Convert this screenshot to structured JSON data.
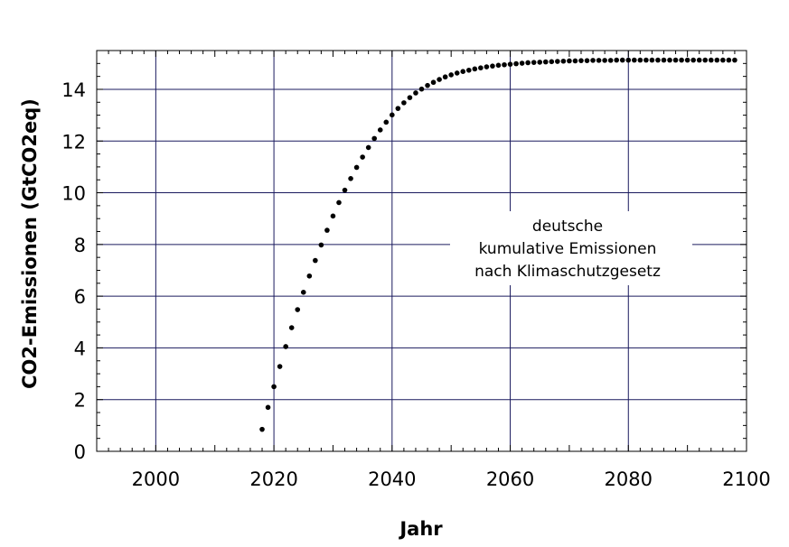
{
  "chart_data": {
    "type": "scatter",
    "title": "",
    "xlabel": "Jahr",
    "ylabel": "CO2-Emissionen (GtCO2eq)",
    "xlim": [
      1990,
      2100
    ],
    "ylim": [
      0,
      15.5
    ],
    "x_ticks": [
      2000,
      2020,
      2040,
      2060,
      2080,
      2100
    ],
    "y_ticks": [
      0,
      2,
      4,
      6,
      8,
      10,
      12,
      14
    ],
    "grid": true,
    "series": [
      {
        "name": "",
        "color": "#000000",
        "points": [
          [
            2018,
            0.85
          ],
          [
            2019,
            1.7
          ],
          [
            2020,
            2.5
          ],
          [
            2021,
            3.28
          ],
          [
            2022,
            4.05
          ],
          [
            2023,
            4.78
          ],
          [
            2024,
            5.48
          ],
          [
            2025,
            6.15
          ],
          [
            2026,
            6.78
          ],
          [
            2027,
            7.38
          ],
          [
            2028,
            7.98
          ],
          [
            2029,
            8.55
          ],
          [
            2030,
            9.1
          ],
          [
            2031,
            9.62
          ],
          [
            2032,
            10.1
          ],
          [
            2033,
            10.55
          ],
          [
            2034,
            10.98
          ],
          [
            2035,
            11.38
          ],
          [
            2036,
            11.75
          ],
          [
            2037,
            12.1
          ],
          [
            2038,
            12.43
          ],
          [
            2039,
            12.73
          ],
          [
            2040,
            13.01
          ],
          [
            2041,
            13.26
          ],
          [
            2042,
            13.48
          ],
          [
            2043,
            13.68
          ],
          [
            2044,
            13.86
          ],
          [
            2045,
            14.01
          ],
          [
            2046,
            14.15
          ],
          [
            2047,
            14.27
          ],
          [
            2048,
            14.38
          ],
          [
            2049,
            14.48
          ],
          [
            2050,
            14.56
          ],
          [
            2051,
            14.63
          ],
          [
            2052,
            14.69
          ],
          [
            2053,
            14.74
          ],
          [
            2054,
            14.79
          ],
          [
            2055,
            14.83
          ],
          [
            2056,
            14.87
          ],
          [
            2057,
            14.9
          ],
          [
            2058,
            14.93
          ],
          [
            2059,
            14.95
          ],
          [
            2060,
            14.97
          ],
          [
            2061,
            14.99
          ],
          [
            2062,
            15.01
          ],
          [
            2063,
            15.03
          ],
          [
            2064,
            15.04
          ],
          [
            2065,
            15.05
          ],
          [
            2066,
            15.06
          ],
          [
            2067,
            15.07
          ],
          [
            2068,
            15.08
          ],
          [
            2069,
            15.09
          ],
          [
            2070,
            15.1
          ],
          [
            2071,
            15.1
          ],
          [
            2072,
            15.11
          ],
          [
            2073,
            15.11
          ],
          [
            2074,
            15.12
          ],
          [
            2075,
            15.12
          ],
          [
            2076,
            15.12
          ],
          [
            2077,
            15.12
          ],
          [
            2078,
            15.13
          ],
          [
            2079,
            15.13
          ],
          [
            2080,
            15.13
          ],
          [
            2081,
            15.13
          ],
          [
            2082,
            15.13
          ],
          [
            2083,
            15.13
          ],
          [
            2084,
            15.13
          ],
          [
            2085,
            15.13
          ],
          [
            2086,
            15.13
          ],
          [
            2087,
            15.13
          ],
          [
            2088,
            15.13
          ],
          [
            2089,
            15.13
          ],
          [
            2090,
            15.13
          ],
          [
            2091,
            15.13
          ],
          [
            2092,
            15.13
          ],
          [
            2093,
            15.13
          ],
          [
            2094,
            15.13
          ],
          [
            2095,
            15.13
          ],
          [
            2096,
            15.13
          ],
          [
            2097,
            15.13
          ],
          [
            2098,
            15.13
          ]
        ]
      }
    ],
    "annotation": [
      "deutsche",
      "kumulative Emissionen",
      "nach Klimaschutzgesetz"
    ]
  }
}
